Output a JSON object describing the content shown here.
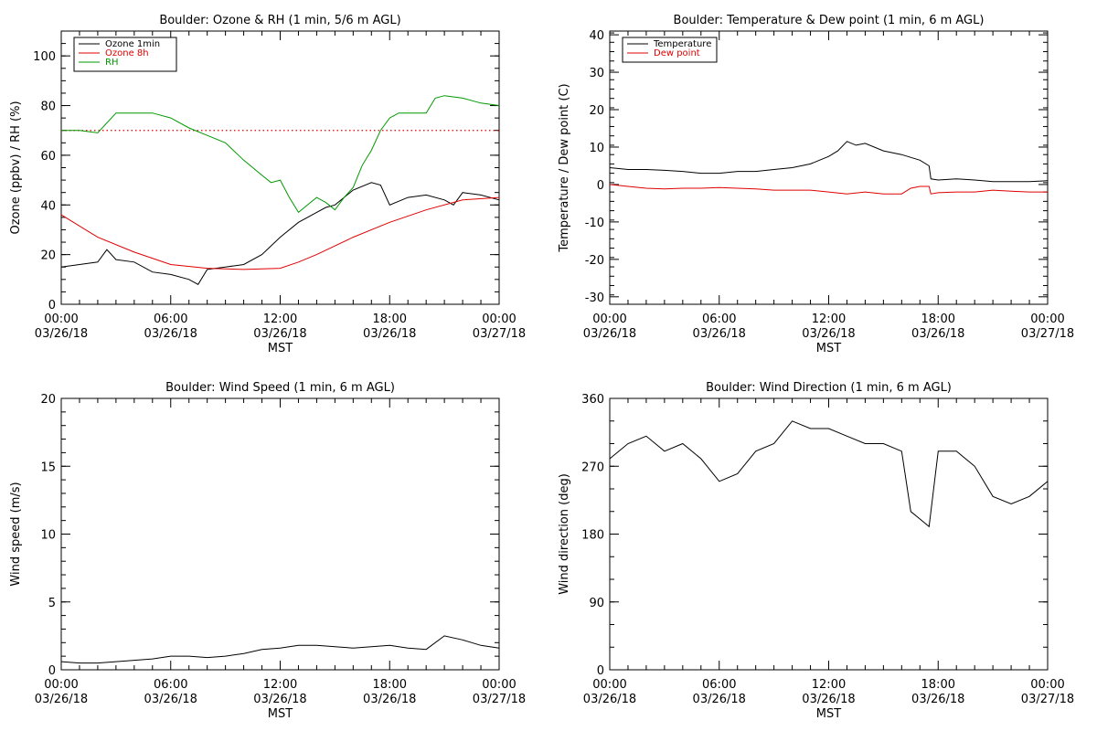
{
  "colors": {
    "black": "#000000",
    "red": "#e00000",
    "green": "#009900"
  },
  "x_ticks": [
    "00:00",
    "06:00",
    "12:00",
    "18:00",
    "00:00"
  ],
  "x_tick_dates": [
    "03/26/18",
    "03/26/18",
    "03/26/18",
    "03/26/18",
    "03/27/18"
  ],
  "xlabel": "MST",
  "chart_data": [
    {
      "id": "ozone_rh",
      "type": "line",
      "title": "Boulder: Ozone & RH (1 min, 5/6 m AGL)",
      "ylabel": "Ozone (ppbv) / RH (%)",
      "xlim": [
        0,
        24
      ],
      "ylim": [
        0,
        110
      ],
      "yticks": [
        0,
        20,
        40,
        60,
        80,
        100
      ],
      "legend": "top-left",
      "reference_line": {
        "y": 70,
        "style": "dotted",
        "color": "#e00000"
      },
      "series": [
        {
          "name": "Ozone 1min",
          "color": "#000000",
          "x": [
            0,
            1,
            2,
            2.5,
            3,
            4,
            5,
            6,
            7,
            7.5,
            8,
            9,
            10,
            11,
            12,
            13,
            14,
            14.5,
            15,
            16,
            17,
            17.5,
            18,
            19,
            20,
            21,
            21.5,
            22,
            23,
            24
          ],
          "y": [
            15,
            16,
            17,
            22,
            18,
            17,
            13,
            12,
            10,
            8,
            14,
            15,
            16,
            20,
            27,
            33,
            37,
            39,
            40,
            46,
            49,
            48,
            40,
            43,
            44,
            42,
            40,
            45,
            44,
            42
          ]
        },
        {
          "name": "Ozone 8h",
          "color": "#e00000",
          "x": [
            0,
            2,
            4,
            6,
            8,
            10,
            12,
            13,
            14,
            16,
            18,
            20,
            22,
            24
          ],
          "y": [
            36,
            27,
            21,
            16,
            14.5,
            14,
            14.5,
            17,
            20,
            27,
            33,
            38,
            42,
            43
          ]
        },
        {
          "name": "RH",
          "color": "#009900",
          "x": [
            0,
            1,
            2,
            3,
            4,
            5,
            6,
            7,
            8,
            9,
            10,
            11,
            11.5,
            12,
            12.5,
            13,
            13.5,
            14,
            14.5,
            15,
            15.5,
            16,
            16.5,
            17,
            17.5,
            18,
            18.5,
            19,
            20,
            20.5,
            21,
            22,
            23,
            24
          ],
          "y": [
            70,
            70,
            69,
            77,
            77,
            77,
            75,
            71,
            68,
            65,
            58,
            52,
            49,
            50,
            43,
            37,
            40,
            43,
            41,
            38,
            43,
            47,
            56,
            62,
            70,
            75,
            77,
            77,
            77,
            83,
            84,
            83,
            81,
            80
          ]
        }
      ]
    },
    {
      "id": "temp_dew",
      "type": "line",
      "title": "Boulder: Temperature & Dew point (1 min, 6 m AGL)",
      "ylabel": "Temperature / Dew point (C)",
      "xlim": [
        0,
        24
      ],
      "ylim": [
        -32,
        41
      ],
      "yticks": [
        -30,
        -20,
        -10,
        0,
        10,
        20,
        30,
        40
      ],
      "legend": "top-left",
      "series": [
        {
          "name": "Temperature",
          "color": "#000000",
          "x": [
            0,
            1,
            2,
            3,
            4,
            5,
            6,
            7,
            8,
            9,
            10,
            11,
            12,
            12.5,
            13,
            13.5,
            14,
            15,
            16,
            17,
            17.5,
            17.6,
            18,
            19,
            20,
            21,
            22,
            23,
            24
          ],
          "y": [
            4.5,
            4,
            4,
            3.8,
            3.5,
            3,
            3,
            3.5,
            3.5,
            4,
            4.5,
            5.5,
            7.5,
            9,
            11.5,
            10.5,
            11,
            9,
            8,
            6.5,
            5,
            1.5,
            1.2,
            1.5,
            1.2,
            0.8,
            0.8,
            0.8,
            1
          ]
        },
        {
          "name": "Dew point",
          "color": "#e00000",
          "x": [
            0,
            1,
            2,
            3,
            4,
            5,
            6,
            7,
            8,
            9,
            10,
            11,
            12,
            13,
            14,
            15,
            16,
            16.5,
            17,
            17.5,
            17.6,
            18,
            19,
            20,
            21,
            22,
            23,
            24
          ],
          "y": [
            0,
            -0.5,
            -1,
            -1.2,
            -1,
            -1,
            -0.8,
            -1,
            -1.2,
            -1.5,
            -1.5,
            -1.5,
            -2,
            -2.5,
            -2,
            -2.5,
            -2.5,
            -1,
            -0.5,
            -0.5,
            -2.5,
            -2.2,
            -2,
            -2,
            -1.5,
            -1.8,
            -2,
            -2
          ]
        }
      ]
    },
    {
      "id": "wind_speed",
      "type": "line",
      "title": "Boulder: Wind Speed (1 min, 6 m AGL)",
      "ylabel": "Wind speed (m/s)",
      "xlim": [
        0,
        24
      ],
      "ylim": [
        0,
        20
      ],
      "yticks": [
        0,
        5,
        10,
        15,
        20
      ],
      "series": [
        {
          "color": "#000000",
          "x": [
            0,
            1,
            2,
            3,
            4,
            5,
            6,
            7,
            8,
            9,
            10,
            11,
            12,
            13,
            14,
            15,
            16,
            17,
            18,
            19,
            20,
            21,
            22,
            23,
            24
          ],
          "y": [
            0.6,
            0.5,
            0.5,
            0.6,
            0.7,
            0.8,
            1.0,
            1.0,
            0.9,
            1.0,
            1.2,
            1.5,
            1.6,
            1.8,
            1.8,
            1.7,
            1.6,
            1.7,
            1.8,
            1.6,
            1.5,
            2.5,
            2.2,
            1.8,
            1.6
          ]
        }
      ]
    },
    {
      "id": "wind_direction",
      "type": "line",
      "title": "Boulder: Wind Direction (1 min, 6 m AGL)",
      "ylabel": "Wind direction (deg)",
      "xlim": [
        0,
        24
      ],
      "ylim": [
        0,
        360
      ],
      "yticks": [
        0,
        90,
        180,
        270,
        360
      ],
      "series": [
        {
          "color": "#000000",
          "x": [
            0,
            1,
            2,
            3,
            4,
            5,
            6,
            7,
            8,
            9,
            10,
            11,
            12,
            13,
            14,
            15,
            16,
            16.5,
            17,
            17.5,
            18,
            19,
            20,
            21,
            22,
            23,
            24
          ],
          "y": [
            280,
            300,
            310,
            290,
            300,
            280,
            250,
            260,
            290,
            300,
            330,
            320,
            320,
            310,
            300,
            300,
            290,
            210,
            200,
            190,
            290,
            290,
            270,
            230,
            220,
            230,
            250
          ]
        }
      ]
    }
  ]
}
